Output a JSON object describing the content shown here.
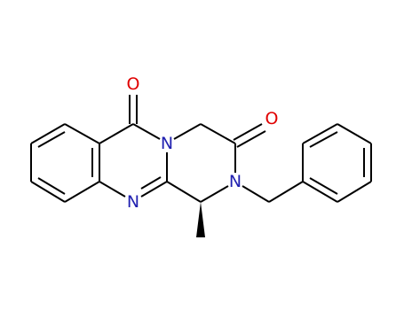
{
  "atoms": [
    {
      "label": "O"
    },
    {
      "label": "N"
    },
    {
      "label": "O"
    },
    {
      "label": "N"
    },
    {
      "label": "N"
    }
  ]
}
